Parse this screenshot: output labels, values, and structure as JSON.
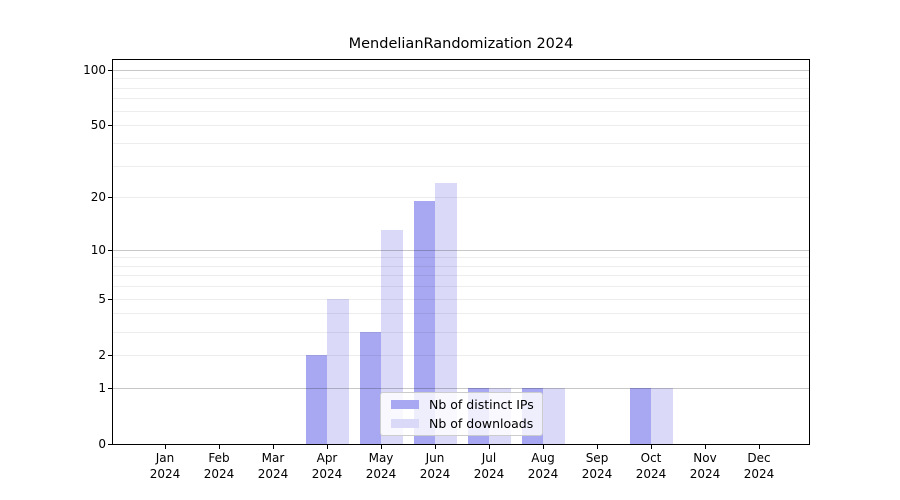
{
  "chart": {
    "title": "MendelianRandomization 2024",
    "legend": {
      "items": [
        {
          "label": "Nb of distinct IPs",
          "color": "#a8a8f2"
        },
        {
          "label": "Nb of downloads",
          "color": "#dadaf8"
        }
      ]
    },
    "y_axis": {
      "tick_values": [
        100,
        50,
        20,
        10,
        5,
        2,
        1,
        0
      ],
      "tick_labels": [
        "100",
        "50",
        "20",
        "10",
        "5",
        "2",
        "1",
        "0"
      ]
    },
    "x_axis": {
      "year": "2024",
      "months": [
        "Jan",
        "Feb",
        "Mar",
        "Apr",
        "May",
        "Jun",
        "Jul",
        "Aug",
        "Sep",
        "Oct",
        "Nov",
        "Dec"
      ]
    },
    "colors": {
      "bar_dark": "#a8a8f2",
      "bar_light": "#dadaf8",
      "grid_major": "rgba(0,0,0,0.22)",
      "grid_minor": "rgba(0,0,0,0.07)"
    }
  },
  "chart_data": {
    "type": "bar",
    "title": "MendelianRandomization 2024",
    "xlabel": "",
    "ylabel": "",
    "categories": [
      "Jan 2024",
      "Feb 2024",
      "Mar 2024",
      "Apr 2024",
      "May 2024",
      "Jun 2024",
      "Jul 2024",
      "Aug 2024",
      "Sep 2024",
      "Oct 2024",
      "Nov 2024",
      "Dec 2024"
    ],
    "series": [
      {
        "name": "Nb of distinct IPs",
        "color": "#a8a8f2",
        "values": [
          0,
          0,
          0,
          2,
          3,
          19,
          1,
          1,
          0,
          1,
          0,
          0
        ]
      },
      {
        "name": "Nb of downloads",
        "color": "#dadaf8",
        "values": [
          0,
          0,
          0,
          5,
          13,
          24,
          1,
          1,
          0,
          1,
          0,
          0
        ]
      }
    ],
    "y_scale": "log1p",
    "y_ticks": [
      0,
      1,
      2,
      5,
      10,
      20,
      50,
      100
    ],
    "minor_gridlines": [
      2,
      3,
      4,
      5,
      6,
      7,
      8,
      9,
      20,
      30,
      40,
      50,
      60,
      70,
      80,
      90
    ],
    "major_gridlines": [
      1,
      10,
      100
    ],
    "ylim": [
      0,
      110
    ],
    "grid": true,
    "legend_position": "inside lower center"
  }
}
